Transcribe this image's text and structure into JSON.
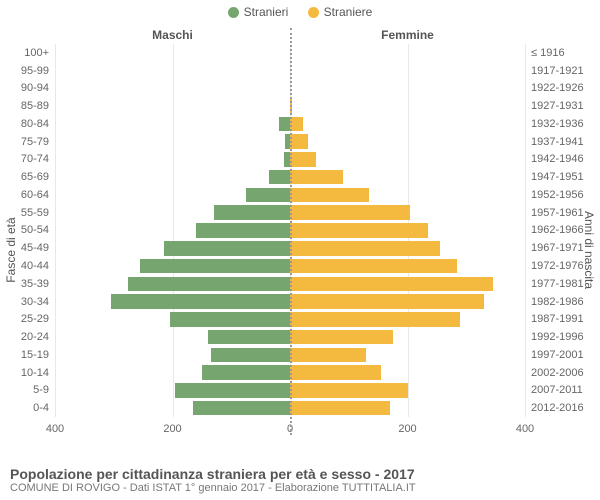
{
  "chart": {
    "type": "population-pyramid",
    "legend": {
      "male": {
        "label": "Stranieri",
        "color": "#76a56f"
      },
      "female": {
        "label": "Straniere",
        "color": "#f4b93f"
      }
    },
    "column_titles": {
      "male": "Maschi",
      "female": "Femmine"
    },
    "y_axis_left_title": "Fasce di età",
    "y_axis_right_title": "Anni di nascita",
    "x_axis_max": 400,
    "x_ticks": [
      400,
      200,
      0,
      200,
      400
    ],
    "grid_color": "#e8e8e8",
    "centerline_color": "#999999",
    "bar_gap_ratio": 0.18,
    "title_fontsize": 14,
    "label_fontsize": 11,
    "background_color": "#ffffff",
    "rows": [
      {
        "age": "100+",
        "birth": "≤ 1916",
        "m": 0,
        "f": 0
      },
      {
        "age": "95-99",
        "birth": "1917-1921",
        "m": 0,
        "f": 0
      },
      {
        "age": "90-94",
        "birth": "1922-1926",
        "m": 0,
        "f": 0
      },
      {
        "age": "85-89",
        "birth": "1927-1931",
        "m": 0,
        "f": 3
      },
      {
        "age": "80-84",
        "birth": "1932-1936",
        "m": 18,
        "f": 22
      },
      {
        "age": "75-79",
        "birth": "1937-1941",
        "m": 8,
        "f": 30
      },
      {
        "age": "70-74",
        "birth": "1942-1946",
        "m": 10,
        "f": 45
      },
      {
        "age": "65-69",
        "birth": "1947-1951",
        "m": 35,
        "f": 90
      },
      {
        "age": "60-64",
        "birth": "1952-1956",
        "m": 75,
        "f": 135
      },
      {
        "age": "55-59",
        "birth": "1957-1961",
        "m": 130,
        "f": 205
      },
      {
        "age": "50-54",
        "birth": "1962-1966",
        "m": 160,
        "f": 235
      },
      {
        "age": "45-49",
        "birth": "1967-1971",
        "m": 215,
        "f": 255
      },
      {
        "age": "40-44",
        "birth": "1972-1976",
        "m": 255,
        "f": 285
      },
      {
        "age": "35-39",
        "birth": "1977-1981",
        "m": 275,
        "f": 345
      },
      {
        "age": "30-34",
        "birth": "1982-1986",
        "m": 305,
        "f": 330
      },
      {
        "age": "25-29",
        "birth": "1987-1991",
        "m": 205,
        "f": 290
      },
      {
        "age": "20-24",
        "birth": "1992-1996",
        "m": 140,
        "f": 175
      },
      {
        "age": "15-19",
        "birth": "1997-2001",
        "m": 135,
        "f": 130
      },
      {
        "age": "10-14",
        "birth": "2002-2006",
        "m": 150,
        "f": 155
      },
      {
        "age": "5-9",
        "birth": "2007-2011",
        "m": 195,
        "f": 200
      },
      {
        "age": "0-4",
        "birth": "2012-2016",
        "m": 165,
        "f": 170
      }
    ]
  },
  "footer": {
    "title": "Popolazione per cittadinanza straniera per età e sesso - 2017",
    "subtitle": "COMUNE DI ROVIGO - Dati ISTAT 1° gennaio 2017 - Elaborazione TUTTITALIA.IT"
  }
}
